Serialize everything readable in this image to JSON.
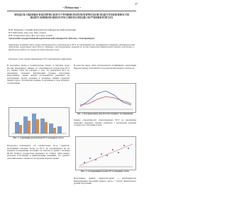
{
  "header": {
    "page_number": "27",
    "section": "~ Педагогика ~"
  },
  "article": {
    "title": "МОДЕЛЬ ОЦЕНКИ ФАКТИЧЕСКОГО УРОВНЯ МАТЕМАТИЧЕСКОЙ ПОДГОТОВЛЕННОСТИ ВЫПУСКНИКОВ ШКОЛ РОССИИ НА ВХОДЕ ОБУЧЕНИЯ В ВУЗАХ",
    "authors": [
      "И.Ю. Бакурина, старший преподаватель кафедры высшей математики",
      "И.Р. Байгузина, канд. пед. наук, доцент",
      "В.В. Хазиргалин, канд. физ.-мат. наук, доцент"
    ],
    "affiliation": "Уральский государственный педагогический университет (Россия, г. Екатеринбург)",
    "abstract": "Аннотация. В работе дана оценка объективности существующего ЕГЭ по математике как инструмента измерения математической подготовки выпускников школ России. Показано, что результаты экзамена не всегда отражают фактический уровень подготовки, и предложена модель его оценки на входе обучения в вузе.",
    "keywords": "Ключевые слова: оценка образования, ЕГЭ, математика, корреляция.",
    "left_col_1": "В настоящее время в политической, бизнес и научной среде России превалирует мнение об объективности результатов ЕГЭ [1]. Можно было бы говорить о том, что результаты ЕГЭ по математике отражают фактический уровень подготовки выпускников, однако многие исследователи указывают на расхождение баллов экзамена и реальных знаний студентов первого курса. Рассмотрим данные, полученные в ходе входного тестирования.",
    "fig1_caption": "Рис. 1. Сравнение результатов ЕГЭ и входного теста",
    "left_col_2": "Результаты показывают, что значительная часть студентов, получивших высокие баллы на ЕГЭ, не подтверждает их на входном тестировании. Особенно это заметно в группе с баллами 60–80. Разброс результатов указывает на слабую связь между итоговой аттестацией и фактическими знаниями, что требует дополнительного анализа и построения модели оценки.",
    "right_col_1": "В качестве меры связи использовался коэффициент корреляции Пирсона между баллами ЕГЭ и результатами входного контроля.",
    "fig2_caption": "Рис. 2. Распределение результатов входного тестирования",
    "right_col_2": "Оценка объективности существующего ЕГЭ по математике позволяет выделить группы студентов с различным уровнем готовности к обучению в вузе.",
    "fig3_caption": "Рис. 3. Соотношение баллов ЕГЭ и входного теста",
    "right_col_3": "Полученные данные свидетельствуют о необходимости корректировки программ первого курса с учетом фактического уровня подготовки."
  }
}
